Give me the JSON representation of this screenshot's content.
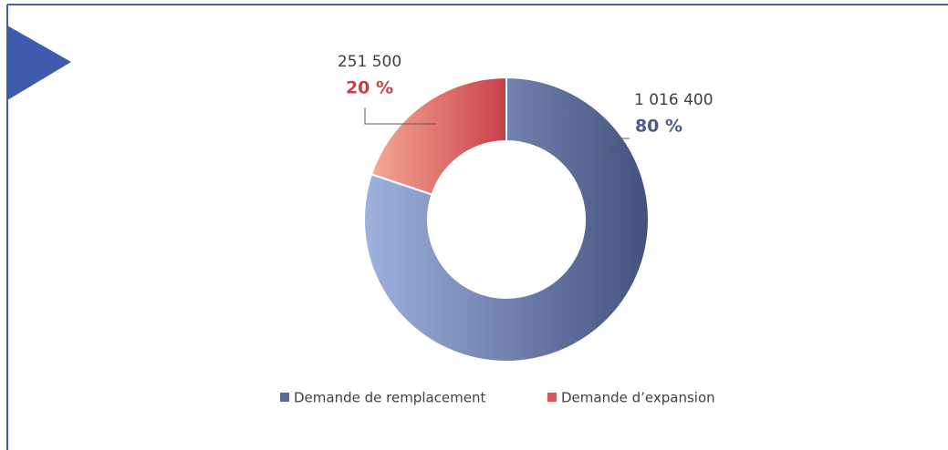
{
  "chart_data": {
    "type": "donut",
    "categories": [
      "Demande de remplacement",
      "Demande d’expansion"
    ],
    "values": [
      1016400,
      251500
    ],
    "value_labels": [
      "1 016 400",
      "251 500"
    ],
    "percent_labels": [
      "80 %",
      "20 %"
    ],
    "colors": [
      "#5a6a9c",
      "#d9575a"
    ],
    "legend": "bottom"
  }
}
